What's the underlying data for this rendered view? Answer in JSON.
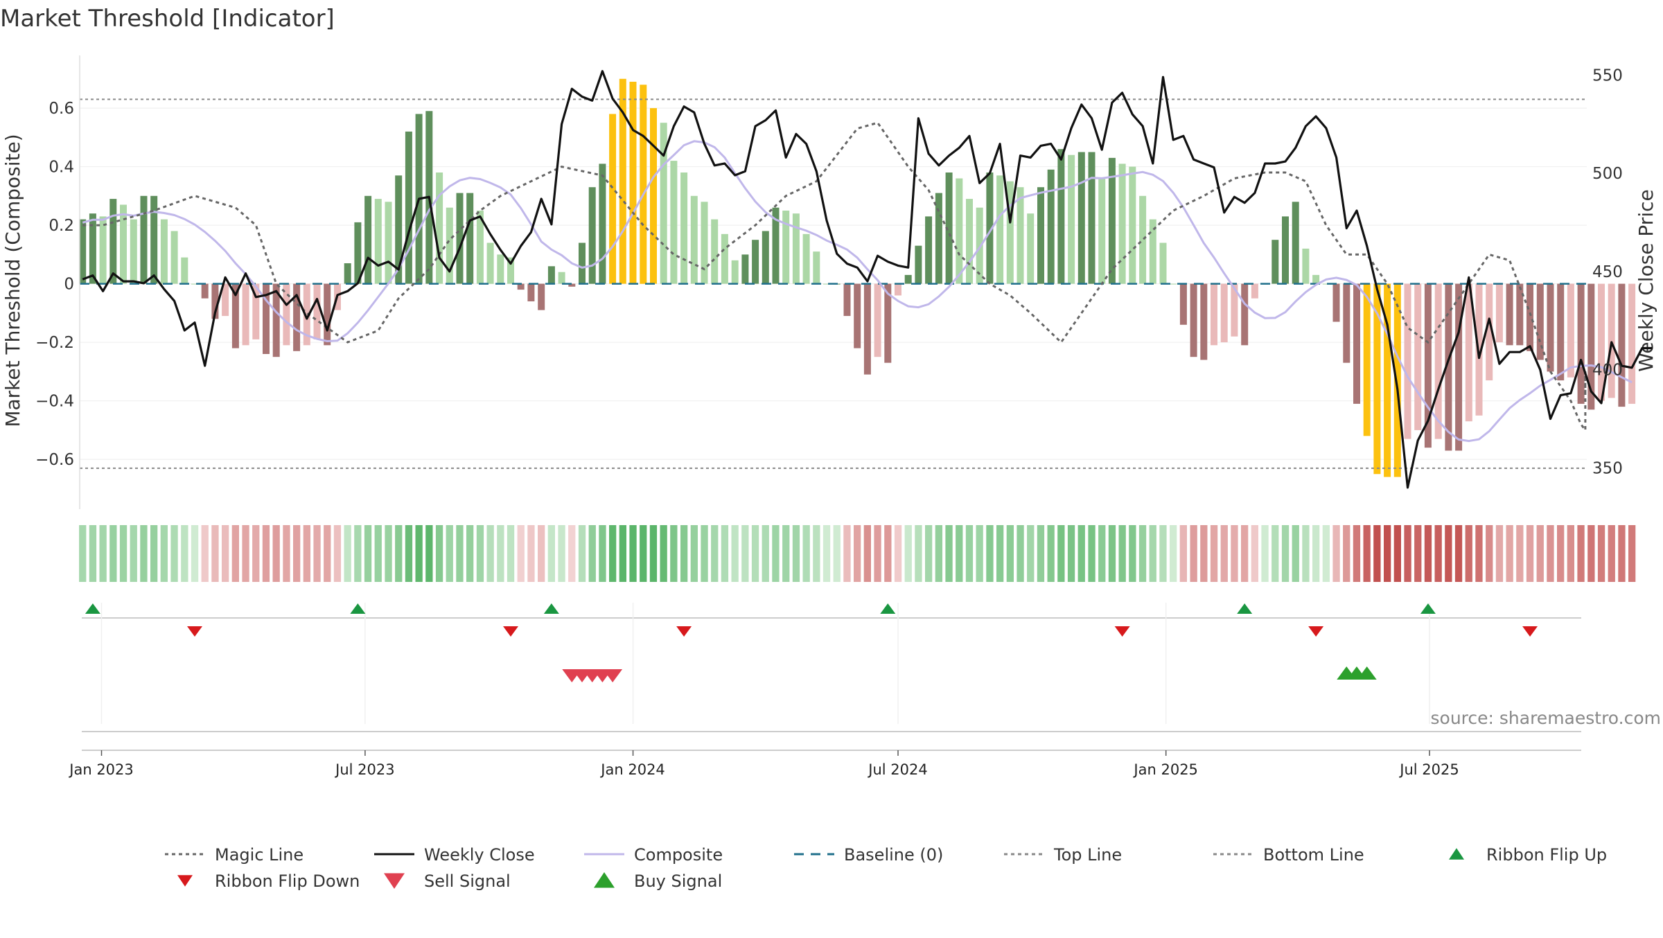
{
  "chart_data": {
    "type": "bar",
    "title": "Market Threshold [Indicator]",
    "ylabel": "Market Threshold (Composite)",
    "y2label": "Weekly Close Price",
    "ylim": [
      -0.77,
      0.78
    ],
    "y2lim": [
      329,
      560
    ],
    "yticks": [
      {
        "v": 0.6,
        "label": "0.6"
      },
      {
        "v": 0.4,
        "label": "0.4"
      },
      {
        "v": 0.2,
        "label": "0.2"
      },
      {
        "v": 0,
        "label": "0"
      },
      {
        "v": -0.2,
        "label": "−0.2"
      },
      {
        "v": -0.4,
        "label": "−0.4"
      },
      {
        "v": -0.6,
        "label": "−0.6"
      }
    ],
    "y2ticks": [
      {
        "v": 550,
        "label": "550"
      },
      {
        "v": 500,
        "label": "500"
      },
      {
        "v": 450,
        "label": "450"
      },
      {
        "v": 400,
        "label": "400"
      },
      {
        "v": 350,
        "label": "350"
      }
    ],
    "xlim": [
      "2022-12-17",
      "2025-10-17"
    ],
    "xticks": [
      {
        "date": "2023-01-01",
        "label": "Jan 2023"
      },
      {
        "date": "2023-07-01",
        "label": "Jul 2023"
      },
      {
        "date": "2024-01-01",
        "label": "Jan 2024"
      },
      {
        "date": "2024-07-01",
        "label": "Jul 2024"
      },
      {
        "date": "2025-01-01",
        "label": "Jan 2025"
      },
      {
        "date": "2025-07-01",
        "label": "Jul 2025"
      }
    ],
    "top_line": 0.63,
    "bottom_line": -0.63,
    "start_date": "2022-12-19",
    "week_step_days": 7,
    "composite_values": [
      0.22,
      0.24,
      0.23,
      0.29,
      0.27,
      0.22,
      0.3,
      0.3,
      0.22,
      0.18,
      0.09,
      0.0,
      -0.05,
      -0.12,
      -0.11,
      -0.22,
      -0.21,
      -0.19,
      -0.24,
      -0.25,
      -0.21,
      -0.23,
      -0.21,
      -0.19,
      -0.21,
      -0.09,
      0.07,
      0.21,
      0.3,
      0.29,
      0.28,
      0.37,
      0.52,
      0.58,
      0.59,
      0.38,
      0.26,
      0.31,
      0.31,
      0.25,
      0.14,
      0.1,
      0.09,
      -0.02,
      -0.06,
      -0.09,
      0.06,
      0.04,
      -0.01,
      0.14,
      0.33,
      0.41,
      0.58,
      0.7,
      0.69,
      0.68,
      0.6,
      0.55,
      0.42,
      0.38,
      0.3,
      0.28,
      0.22,
      0.17,
      0.08,
      0.1,
      0.15,
      0.18,
      0.26,
      0.25,
      0.24,
      0.17,
      0.11,
      0.0,
      0.0,
      -0.11,
      -0.22,
      -0.31,
      -0.25,
      -0.27,
      -0.04,
      0.03,
      0.13,
      0.23,
      0.31,
      0.38,
      0.36,
      0.29,
      0.26,
      0.38,
      0.37,
      0.35,
      0.33,
      0.24,
      0.33,
      0.39,
      0.46,
      0.44,
      0.45,
      0.45,
      0.36,
      0.43,
      0.41,
      0.4,
      0.3,
      0.22,
      0.14,
      0.0,
      -0.14,
      -0.25,
      -0.26,
      -0.21,
      -0.2,
      -0.18,
      -0.21,
      -0.05,
      0.0,
      0.15,
      0.23,
      0.28,
      0.12,
      0.03,
      0.0,
      -0.13,
      -0.27,
      -0.41,
      -0.52,
      -0.65,
      -0.66,
      -0.66,
      -0.53,
      -0.5,
      -0.56,
      -0.53,
      -0.57,
      -0.57,
      -0.47,
      -0.45,
      -0.33,
      -0.2,
      -0.21,
      -0.21,
      -0.23,
      -0.26,
      -0.3,
      -0.33,
      -0.32,
      -0.41,
      -0.43,
      -0.4,
      -0.39,
      -0.42,
      -0.41
    ],
    "close_values": [
      446,
      448,
      440,
      449,
      445,
      445,
      444,
      448,
      441,
      435,
      420,
      424,
      402,
      429,
      447,
      438,
      449,
      437,
      438,
      440,
      433,
      438,
      426,
      436,
      420,
      438,
      440,
      444,
      457,
      453,
      455,
      451,
      470,
      487,
      488,
      457,
      450,
      462,
      476,
      478,
      469,
      461,
      454,
      463,
      470,
      487,
      474,
      525,
      543,
      539,
      537,
      552,
      538,
      531,
      522,
      519,
      514,
      509,
      524,
      534,
      531,
      515,
      504,
      505,
      499,
      501,
      524,
      527,
      532,
      508,
      520,
      515,
      501,
      476,
      459,
      454,
      452,
      445,
      458,
      455,
      453,
      452,
      528,
      510,
      504,
      509,
      513,
      519,
      495,
      500,
      515,
      475,
      509,
      508,
      514,
      515,
      507,
      523,
      535,
      528,
      512,
      536,
      541,
      530,
      524,
      505,
      549,
      517,
      519,
      507,
      505,
      503,
      480,
      488,
      485,
      490,
      505,
      505,
      506,
      513,
      524,
      529,
      523,
      508,
      472,
      481,
      463,
      441,
      423,
      390,
      340,
      364,
      374,
      390,
      405,
      419,
      447,
      406,
      426,
      403,
      409,
      409,
      412,
      400,
      375,
      387,
      388,
      405,
      389,
      383,
      414,
      402,
      401,
      411,
      411
    ],
    "magic_line": [
      0.2,
      0.2,
      0.25,
      0.3,
      0.26,
      0.2,
      0.0,
      -0.1,
      -0.2,
      -0.16,
      -0.05,
      0.05,
      0.15,
      0.25,
      0.3,
      0.35,
      0.4,
      0.37,
      0.2,
      0.1,
      0.05,
      0.12,
      0.2,
      0.3,
      0.35,
      0.53,
      0.55,
      0.4,
      0.32,
      0.1,
      0.0,
      -0.04,
      -0.1,
      -0.2,
      -0.1,
      0.05,
      0.15,
      0.25,
      0.3,
      0.36,
      0.38,
      0.38,
      0.35,
      0.2,
      0.1,
      0.1,
      0.0,
      -0.15,
      -0.2,
      -0.1,
      0.0,
      0.1,
      0.08,
      -0.1,
      -0.3,
      -0.4,
      -0.48,
      -0.5,
      -0.5,
      -0.35,
      -0.3,
      -0.35,
      -0.38
    ],
    "magic_line_dates": [
      "2022-12-19",
      "2023-01-02",
      "2023-02-06",
      "2023-03-06",
      "2023-04-03",
      "2023-04-17",
      "2023-05-01",
      "2023-05-22",
      "2023-06-19",
      "2023-07-10",
      "2023-07-24",
      "2023-08-14",
      "2023-08-28",
      "2023-09-18",
      "2023-10-02",
      "2023-10-23",
      "2023-11-13",
      "2023-12-11",
      "2024-01-08",
      "2024-01-29",
      "2024-02-19",
      "2024-03-04",
      "2024-03-25",
      "2024-04-15",
      "2024-05-06",
      "2024-06-03",
      "2024-06-17",
      "2024-07-08",
      "2024-07-22",
      "2024-08-12",
      "2024-09-02",
      "2024-09-16",
      "2024-09-30",
      "2024-10-21",
      "2024-11-04",
      "2024-11-25",
      "2024-12-16",
      "2025-01-06",
      "2025-01-27",
      "2025-02-17",
      "2025-03-10",
      "2025-03-24",
      "2025-04-07",
      "2025-04-21",
      "2025-05-05",
      "2025-05-19",
      "2025-06-02",
      "2025-06-16",
      "2025-06-30",
      "2025-07-14",
      "2025-07-28",
      "2025-08-11",
      "2025-08-25",
      "2025-09-08",
      "2025-09-22",
      "2025-10-06",
      "2025-10-13",
      "2025-10-16",
      "2025-10-16",
      "2025-10-16",
      "2025-10-16",
      "2025-10-16",
      "2025-10-16"
    ],
    "series": [
      {
        "name": "Magic Line",
        "style": "dotted",
        "color": "#666666"
      },
      {
        "name": "Weekly Close",
        "style": "solid",
        "color": "#111111"
      },
      {
        "name": "Composite",
        "style": "solid",
        "color": "#c0b7ea"
      },
      {
        "name": "Baseline (0)",
        "style": "dashed",
        "color": "#1f6f8b"
      },
      {
        "name": "Top Line",
        "style": "dotted",
        "color": "#888888"
      },
      {
        "name": "Bottom Line",
        "style": "dotted",
        "color": "#888888"
      },
      {
        "name": "Ribbon Flip Up",
        "style": "marker-up",
        "color": "#1a9641"
      },
      {
        "name": "Ribbon Flip Down",
        "style": "marker-down",
        "color": "#d7191c"
      },
      {
        "name": "Sell Signal",
        "style": "marker-down-large",
        "color": "#e04050"
      },
      {
        "name": "Buy Signal",
        "style": "marker-up-large",
        "color": "#2ca02c"
      }
    ],
    "ribbon_flip_up": [
      "2022-12-26",
      "2023-06-26",
      "2023-11-06",
      "2024-06-24",
      "2025-02-24",
      "2025-06-30"
    ],
    "ribbon_flip_down": [
      "2023-03-06",
      "2023-10-09",
      "2024-02-05",
      "2024-12-02",
      "2025-04-14",
      "2025-09-08"
    ],
    "sell_signals": [
      "2023-11-20",
      "2023-11-27",
      "2023-12-04",
      "2023-12-11",
      "2023-12-18"
    ],
    "buy_signals": [
      "2025-05-05",
      "2025-05-12",
      "2025-05-19"
    ],
    "ribbon_colors": {
      "pos_strong": "#5bb56a",
      "pos_weak": "#d0ebd2",
      "neg_strong": "#c1504f",
      "neg_weak": "#f3d4d4"
    },
    "bar_colors": {
      "pos_strong": "#5f8f5c",
      "pos_weak": "#acd7a6",
      "neg_strong": "#a87474",
      "neg_weak": "#e9b9b9",
      "extreme": "#fcc10f"
    },
    "source_note": "source: sharemaestro.com"
  }
}
